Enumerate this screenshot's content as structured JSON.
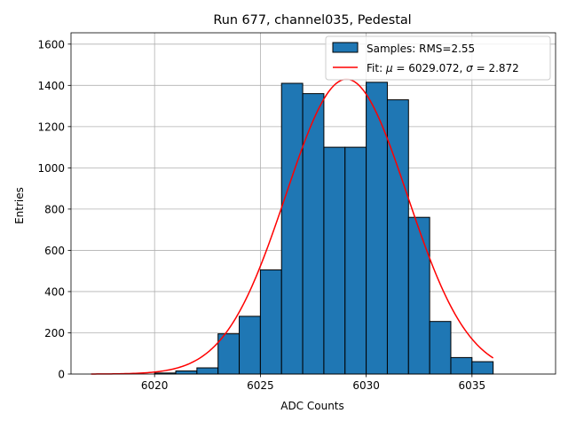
{
  "chart_data": {
    "type": "bar",
    "title": "Run 677, channel035, Pedestal",
    "xlabel": "ADC Counts",
    "ylabel": "Entries",
    "xlim": [
      6016.05,
      6038.95
    ],
    "ylim": [
      0,
      1655
    ],
    "grid": true,
    "legend_position": "top-right",
    "xticks": [
      6020,
      6025,
      6030,
      6035
    ],
    "yticks": [
      0,
      200,
      400,
      600,
      800,
      1000,
      1200,
      1400,
      1600
    ],
    "bin_width": 1,
    "bins": [
      {
        "left": 6020,
        "count": 5
      },
      {
        "left": 6021,
        "count": 15
      },
      {
        "left": 6022,
        "count": 30
      },
      {
        "left": 6023,
        "count": 195
      },
      {
        "left": 6024,
        "count": 280
      },
      {
        "left": 6025,
        "count": 505
      },
      {
        "left": 6026,
        "count": 1410
      },
      {
        "left": 6027,
        "count": 1360
      },
      {
        "left": 6028,
        "count": 1100
      },
      {
        "left": 6029,
        "count": 1100
      },
      {
        "left": 6030,
        "count": 1415
      },
      {
        "left": 6031,
        "count": 1330
      },
      {
        "left": 6032,
        "count": 760
      },
      {
        "left": 6033,
        "count": 255
      },
      {
        "left": 6034,
        "count": 80
      },
      {
        "left": 6035,
        "count": 60
      }
    ],
    "fit": {
      "mu": 6029.072,
      "sigma": 2.872,
      "amplitude": 1430,
      "x_start": 6017,
      "x_end": 6036
    },
    "series": [
      {
        "name": "Samples: RMS=2.55",
        "type": "histogram",
        "color": "#1f77b4"
      },
      {
        "name": "Fit: μ = 6029.072, σ = 2.872",
        "type": "line",
        "color": "#ff0000"
      }
    ]
  },
  "legend": {
    "samples_label": "Samples: RMS=2.55",
    "fit_label_prefix": "Fit: ",
    "fit_mu_symbol": "μ",
    "fit_mu_text": " = 6029.072, ",
    "fit_sigma_symbol": "σ",
    "fit_sigma_text": " = 2.872"
  }
}
